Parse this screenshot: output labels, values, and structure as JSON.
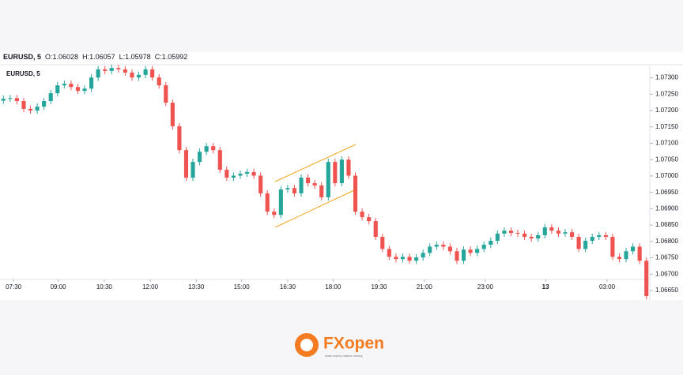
{
  "header": {
    "symbol": "EURUSD, 5",
    "ohlc": [
      {
        "key": "O:",
        "value": "1.06028"
      },
      {
        "key": "H:",
        "value": "1.06057"
      },
      {
        "key": "L:",
        "value": "1.05978"
      },
      {
        "key": "C:",
        "value": "1.05992"
      }
    ]
  },
  "chart_data": {
    "type": "candlestick",
    "title": "EURUSD, 5",
    "open": [
      1.0723,
      1.07236,
      1.07238,
      1.07229,
      1.07205,
      1.072,
      1.07212,
      1.07229,
      1.07253,
      1.07277,
      1.07282,
      1.07272,
      1.0726,
      1.07267,
      1.07301,
      1.07326,
      1.07321,
      1.0733,
      1.07326,
      1.07316,
      1.07301,
      1.07309,
      1.07326,
      1.07301,
      1.07277,
      1.07224,
      1.07152,
      1.07079,
      1.06995,
      1.07043,
      1.07074,
      1.07091,
      1.07079,
      1.07019,
      1.06995,
      1.07001,
      1.07007,
      1.07012,
      1.07001,
      1.06947,
      1.06891,
      1.06881,
      1.06959,
      1.06963,
      1.06947,
      1.06995,
      1.06978,
      1.06971,
      1.06935,
      1.07043,
      1.06978,
      1.0705,
      1.07001,
      1.06891,
      1.06874,
      1.06862,
      1.06814,
      1.06777,
      1.06753,
      1.06746,
      1.06753,
      1.06741,
      1.06751,
      1.06765,
      1.06784,
      1.0679,
      1.06784,
      1.0677,
      1.06741,
      1.06775,
      1.06765,
      1.06777,
      1.0679,
      1.06802,
      1.06824,
      1.06833,
      1.06826,
      1.06824,
      1.06814,
      1.06809,
      1.06819,
      1.06843,
      1.06833,
      1.06824,
      1.06828,
      1.06814,
      1.06777,
      1.06802,
      1.06814,
      1.06819,
      1.06814,
      1.06753,
      1.06746,
      1.0677,
      1.06784,
      1.06741
    ],
    "high": [
      1.07246,
      1.07248,
      1.07248,
      1.07239,
      1.07215,
      1.07222,
      1.07239,
      1.07263,
      1.07287,
      1.07292,
      1.07292,
      1.07282,
      1.07277,
      1.07311,
      1.07336,
      1.07336,
      1.0734,
      1.0734,
      1.07336,
      1.07326,
      1.07319,
      1.07336,
      1.07336,
      1.07311,
      1.07287,
      1.07234,
      1.07162,
      1.07089,
      1.07053,
      1.07084,
      1.07101,
      1.07101,
      1.07089,
      1.07029,
      1.07011,
      1.07017,
      1.07022,
      1.07022,
      1.07011,
      1.06957,
      1.06901,
      1.06969,
      1.06973,
      1.06973,
      1.07005,
      1.07005,
      1.06988,
      1.06981,
      1.07053,
      1.07053,
      1.0706,
      1.0706,
      1.07011,
      1.06901,
      1.06884,
      1.06872,
      1.06824,
      1.06787,
      1.06763,
      1.06763,
      1.06763,
      1.06761,
      1.06775,
      1.06794,
      1.068,
      1.068,
      1.06794,
      1.0678,
      1.06785,
      1.06785,
      1.06787,
      1.068,
      1.06812,
      1.06834,
      1.06843,
      1.06843,
      1.06836,
      1.06834,
      1.06824,
      1.06829,
      1.06853,
      1.06853,
      1.06843,
      1.06838,
      1.06838,
      1.06824,
      1.06812,
      1.06824,
      1.06829,
      1.06829,
      1.06824,
      1.06763,
      1.0678,
      1.06794,
      1.06794,
      1.06751
    ],
    "low": [
      1.0722,
      1.07226,
      1.07219,
      1.07195,
      1.0719,
      1.0719,
      1.07202,
      1.07219,
      1.07243,
      1.07267,
      1.07262,
      1.0725,
      1.0725,
      1.07257,
      1.07291,
      1.07311,
      1.07311,
      1.07316,
      1.07306,
      1.07291,
      1.07291,
      1.07299,
      1.07291,
      1.07267,
      1.07214,
      1.07142,
      1.07069,
      1.06985,
      1.06985,
      1.07033,
      1.07064,
      1.07069,
      1.07009,
      1.06985,
      1.06985,
      1.06991,
      1.06997,
      1.06991,
      1.06937,
      1.06881,
      1.06871,
      1.06871,
      1.06949,
      1.06937,
      1.06937,
      1.06968,
      1.06961,
      1.06925,
      1.06925,
      1.06968,
      1.06968,
      1.06991,
      1.06881,
      1.06864,
      1.06852,
      1.06804,
      1.06767,
      1.06743,
      1.06736,
      1.06736,
      1.06731,
      1.06731,
      1.06741,
      1.06755,
      1.06774,
      1.06774,
      1.0676,
      1.06731,
      1.06731,
      1.06755,
      1.06755,
      1.06767,
      1.0678,
      1.06792,
      1.06814,
      1.06816,
      1.06814,
      1.06804,
      1.06799,
      1.06799,
      1.06809,
      1.06823,
      1.06814,
      1.06814,
      1.06804,
      1.06767,
      1.06767,
      1.06792,
      1.06804,
      1.06804,
      1.06743,
      1.06736,
      1.06736,
      1.0676,
      1.06731,
      1.06623
    ],
    "close": [
      1.07236,
      1.07238,
      1.07229,
      1.07205,
      1.072,
      1.07212,
      1.07229,
      1.07253,
      1.07277,
      1.07282,
      1.07272,
      1.0726,
      1.07267,
      1.07301,
      1.07326,
      1.07321,
      1.0733,
      1.07326,
      1.07316,
      1.07301,
      1.07309,
      1.07326,
      1.07301,
      1.07277,
      1.07224,
      1.07152,
      1.07079,
      1.06995,
      1.07043,
      1.07074,
      1.07091,
      1.07079,
      1.07019,
      1.06995,
      1.07001,
      1.07007,
      1.07012,
      1.07001,
      1.06947,
      1.06891,
      1.06881,
      1.06959,
      1.06963,
      1.06947,
      1.06995,
      1.06978,
      1.06971,
      1.06935,
      1.07043,
      1.06978,
      1.0705,
      1.07001,
      1.06891,
      1.06874,
      1.06862,
      1.06814,
      1.06777,
      1.06753,
      1.06746,
      1.06753,
      1.06741,
      1.06751,
      1.06765,
      1.06784,
      1.0679,
      1.06784,
      1.0677,
      1.06741,
      1.06775,
      1.06765,
      1.06777,
      1.0679,
      1.06802,
      1.06824,
      1.06833,
      1.06826,
      1.06824,
      1.06814,
      1.06809,
      1.06819,
      1.06843,
      1.06833,
      1.06824,
      1.06828,
      1.06814,
      1.06777,
      1.06802,
      1.06814,
      1.06819,
      1.06814,
      1.06753,
      1.06746,
      1.0677,
      1.06784,
      1.06741,
      1.06633
    ],
    "up_color": "#26a69a",
    "down_color": "#ef5350",
    "grid": false,
    "xlim": [
      0,
      96
    ],
    "xticks": [
      {
        "value": 2,
        "label": "07:30"
      },
      {
        "value": 8.6,
        "label": "09:00"
      },
      {
        "value": 15.4,
        "label": "10:30"
      },
      {
        "value": 22.2,
        "label": "12:00"
      },
      {
        "value": 29,
        "label": "13:30"
      },
      {
        "value": 35.7,
        "label": "15:00"
      },
      {
        "value": 42.5,
        "label": "16:30"
      },
      {
        "value": 49.2,
        "label": "18:00"
      },
      {
        "value": 56,
        "label": "19:30"
      },
      {
        "value": 62.7,
        "label": "21:00"
      },
      {
        "value": 71.7,
        "label": "23:00"
      },
      {
        "value": 80.6,
        "label": "13"
      },
      {
        "value": 89.7,
        "label": "03:00"
      }
    ],
    "ylim": [
      1.06621,
      1.0734
    ],
    "yticks": [
      {
        "value": 1.073,
        "label": "1.07300"
      },
      {
        "value": 1.0725,
        "label": "1.07250"
      },
      {
        "value": 1.072,
        "label": "1.07200"
      },
      {
        "value": 1.0715,
        "label": "1.07150"
      },
      {
        "value": 1.071,
        "label": "1.07100"
      },
      {
        "value": 1.0705,
        "label": "1.07050"
      },
      {
        "value": 1.07,
        "label": "1.07000"
      },
      {
        "value": 1.0695,
        "label": "1.06950"
      },
      {
        "value": 1.069,
        "label": "1.06900"
      },
      {
        "value": 1.0685,
        "label": "1.06850"
      },
      {
        "value": 1.068,
        "label": "1.06800"
      },
      {
        "value": 1.0675,
        "label": "1.06750"
      },
      {
        "value": 1.067,
        "label": "1.06700"
      },
      {
        "value": 1.0665,
        "label": "1.06650"
      }
    ]
  },
  "logo": {
    "name": "FXopen",
    "tagline": "what money makes money"
  }
}
